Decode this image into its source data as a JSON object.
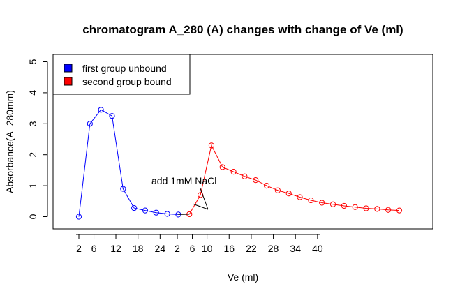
{
  "chart_data": {
    "type": "line",
    "title": "chromatogram A_280 (A) changes with change of Ve (ml)",
    "xlabel": "Ve (ml)",
    "ylabel": "Absorbance(A_280mm)",
    "ylim": [
      0,
      5
    ],
    "yticks": [
      "0",
      "1",
      "2",
      "3",
      "4",
      "5"
    ],
    "xtick_labels": [
      "2",
      "6",
      "12",
      "18",
      "24",
      "2",
      "6",
      "10",
      "16",
      "22",
      "28",
      "34",
      "40"
    ],
    "grid": false,
    "legend_position": "top-left",
    "annotation": "add 1mM NaCl",
    "series": [
      {
        "name": "first group unbound",
        "color": "#0000ff",
        "values": [
          0.0,
          3.0,
          3.45,
          3.25,
          0.9,
          0.28,
          0.2,
          0.13,
          0.09,
          0.07
        ]
      },
      {
        "name": "second group bound",
        "color": "#ff0000",
        "values": [
          0.08,
          0.7,
          2.3,
          1.6,
          1.45,
          1.3,
          1.18,
          1.0,
          0.85,
          0.75,
          0.63,
          0.53,
          0.45,
          0.4,
          0.35,
          0.31,
          0.27,
          0.25,
          0.22,
          0.2
        ]
      }
    ]
  }
}
